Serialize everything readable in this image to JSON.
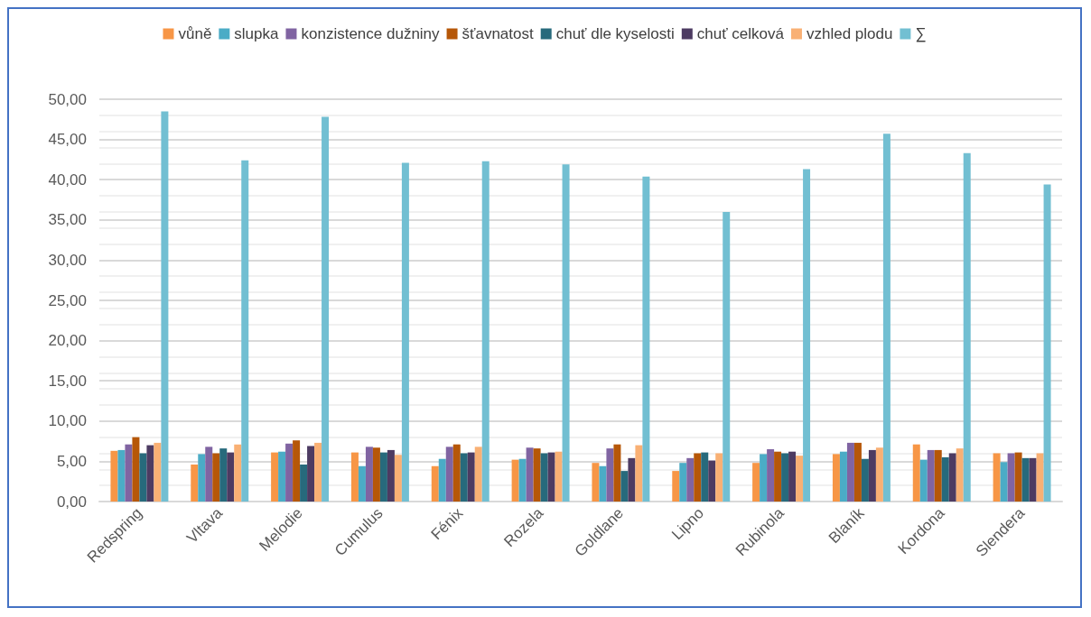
{
  "chart_data": {
    "type": "bar",
    "categories": [
      "Redspring",
      "Vltava",
      "Melodie",
      "Cumulus",
      "Fénix",
      "Rozela",
      "Goldlane",
      "Lipno",
      "Rubinola",
      "Blaník",
      "Kordona",
      "Slendera"
    ],
    "series": [
      {
        "name": "vůně",
        "color": "#f79646",
        "values": [
          6.3,
          4.6,
          6.1,
          6.1,
          4.4,
          5.2,
          4.8,
          3.8,
          4.8,
          5.9,
          7.1,
          6.0
        ]
      },
      {
        "name": "slupka",
        "color": "#4bacc6",
        "values": [
          6.4,
          5.9,
          6.2,
          4.4,
          5.3,
          5.3,
          4.4,
          4.8,
          5.9,
          6.2,
          5.2,
          4.9
        ]
      },
      {
        "name": "konzistence dužniny",
        "color": "#8064a2",
        "values": [
          7.1,
          6.8,
          7.2,
          6.8,
          6.8,
          6.7,
          6.6,
          5.4,
          6.5,
          7.3,
          6.4,
          6.0
        ]
      },
      {
        "name": "šťavnatost",
        "color": "#b65708",
        "values": [
          8.0,
          6.0,
          7.6,
          6.7,
          7.1,
          6.6,
          7.1,
          6.0,
          6.2,
          7.3,
          6.4,
          6.1
        ]
      },
      {
        "name": "chuť dle kyselosti",
        "color": "#276a7c",
        "values": [
          6.0,
          6.6,
          4.6,
          6.1,
          6.0,
          6.0,
          3.8,
          6.1,
          6.0,
          5.3,
          5.5,
          5.4
        ]
      },
      {
        "name": "chuť celková",
        "color": "#4d3b62",
        "values": [
          7.0,
          6.1,
          6.9,
          6.4,
          6.1,
          6.1,
          5.4,
          5.1,
          6.2,
          6.4,
          6.0,
          5.4
        ]
      },
      {
        "name": "vzhled plodu",
        "color": "#f9b074",
        "values": [
          7.3,
          7.1,
          7.3,
          5.8,
          6.8,
          6.2,
          7.0,
          6.0,
          5.7,
          6.7,
          6.6,
          6.0
        ]
      },
      {
        "name": "∑",
        "color": "#72bfd2",
        "values": [
          48.5,
          42.4,
          47.8,
          42.1,
          42.3,
          41.9,
          40.4,
          36.0,
          41.3,
          45.7,
          43.3,
          39.4
        ]
      }
    ],
    "ylim": [
      0,
      50
    ],
    "yticks": [
      {
        "value": 0,
        "label": "0,00"
      },
      {
        "value": 5,
        "label": "5,00"
      },
      {
        "value": 10,
        "label": "10,00"
      },
      {
        "value": 15,
        "label": "15,00"
      },
      {
        "value": 20,
        "label": "20,00"
      },
      {
        "value": 25,
        "label": "25,00"
      },
      {
        "value": 30,
        "label": "30,00"
      },
      {
        "value": 35,
        "label": "35,00"
      },
      {
        "value": 40,
        "label": "40,00"
      },
      {
        "value": 45,
        "label": "45,00"
      },
      {
        "value": 50,
        "label": "50,00"
      }
    ],
    "grid": true,
    "legend": "top"
  }
}
